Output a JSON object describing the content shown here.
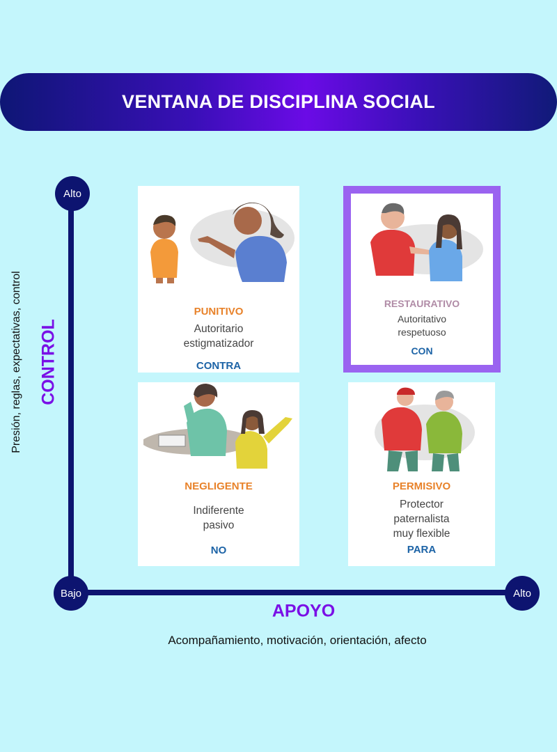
{
  "title": "VENTANA DE DISCIPLINA SOCIAL",
  "vertical_axis": {
    "label": "CONTROL",
    "description": "Presión, reglas, expectativas, control",
    "high": "Alto"
  },
  "horizontal_axis": {
    "label": "APOYO",
    "description": "Acompañamiento, motivación, orientación, afecto",
    "low": "Bajo",
    "high": "Alto"
  },
  "quadrants": {
    "punitivo": {
      "title": "PUNITIVO",
      "desc1": "Autoritario",
      "desc2": "estigmatizador",
      "prep": "CONTRA"
    },
    "restaurativo": {
      "title": "RESTAURATIVO",
      "desc1": "Autoritativo",
      "desc2": "respetuoso",
      "prep": "CON"
    },
    "negligente": {
      "title": "NEGLIGENTE",
      "desc1": "Indiferente",
      "desc2": "pasivo",
      "prep": "NO"
    },
    "permisivo": {
      "title": "PERMISIVO",
      "desc1": "Protector",
      "desc2": "paternalista",
      "desc3": "muy flexible",
      "prep": "PARA"
    }
  },
  "colors": {
    "background": "#c4f6fc",
    "axis": "#0d1470",
    "accent_purple": "#7a10e6",
    "card_title_orange": "#e8822a",
    "card_prep_blue": "#1c63a6",
    "highlight_border": "#9a63f0"
  }
}
